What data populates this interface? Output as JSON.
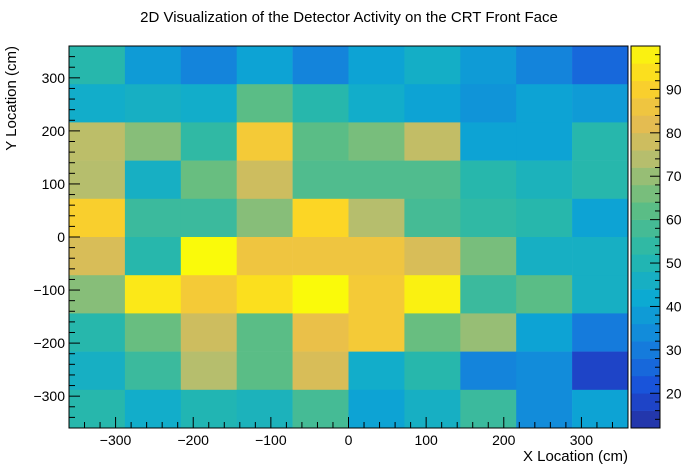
{
  "chart_data": {
    "type": "heatmap",
    "title": "2D Visualization of the Detector Activity on the CRT Front Face",
    "xlabel": "X Location (cm)",
    "ylabel": "Y Location (cm)",
    "xlim": [
      -360,
      360
    ],
    "ylim": [
      -360,
      360
    ],
    "x_ticks": [
      -300,
      -200,
      -100,
      0,
      100,
      200,
      300
    ],
    "y_ticks": [
      -300,
      -200,
      -100,
      0,
      100,
      200,
      300
    ],
    "x_tick_labels": [
      "−300",
      "−200",
      "−100",
      "0",
      "100",
      "200",
      "300"
    ],
    "y_tick_labels": [
      "−300",
      "−200",
      "−100",
      "0",
      "100",
      "200",
      "300"
    ],
    "colorbar": {
      "min": 12,
      "max": 100,
      "ticks": [
        20,
        30,
        40,
        50,
        60,
        70,
        80,
        90
      ],
      "tick_labels": [
        "20",
        "30",
        "40",
        "50",
        "60",
        "70",
        "80",
        "90"
      ]
    },
    "x_bin_edges": [
      -360,
      -288,
      -216,
      -144,
      -72,
      0,
      72,
      144,
      216,
      288,
      360
    ],
    "y_bin_edges": [
      -360,
      -288,
      -216,
      -144,
      -72,
      0,
      72,
      144,
      216,
      288,
      360
    ],
    "values_rows_top_to_bottom": [
      [
        52,
        38,
        32,
        40,
        32,
        40,
        45,
        38,
        32,
        26
      ],
      [
        44,
        46,
        44,
        62,
        52,
        44,
        40,
        36,
        40,
        38
      ],
      [
        75,
        68,
        54,
        88,
        62,
        66,
        76,
        40,
        40,
        52
      ],
      [
        74,
        46,
        64,
        78,
        60,
        60,
        60,
        52,
        48,
        52
      ],
      [
        90,
        56,
        56,
        68,
        92,
        74,
        58,
        54,
        52,
        40
      ],
      [
        80,
        52,
        100,
        86,
        86,
        86,
        80,
        66,
        46,
        46
      ],
      [
        68,
        96,
        88,
        94,
        100,
        88,
        98,
        56,
        62,
        46
      ],
      [
        52,
        64,
        78,
        62,
        84,
        88,
        64,
        70,
        40,
        30
      ],
      [
        46,
        56,
        74,
        62,
        80,
        44,
        52,
        32,
        34,
        18
      ],
      [
        52,
        44,
        50,
        48,
        58,
        40,
        46,
        56,
        34,
        40
      ]
    ],
    "grid": false,
    "legend": "colorbar-right"
  }
}
